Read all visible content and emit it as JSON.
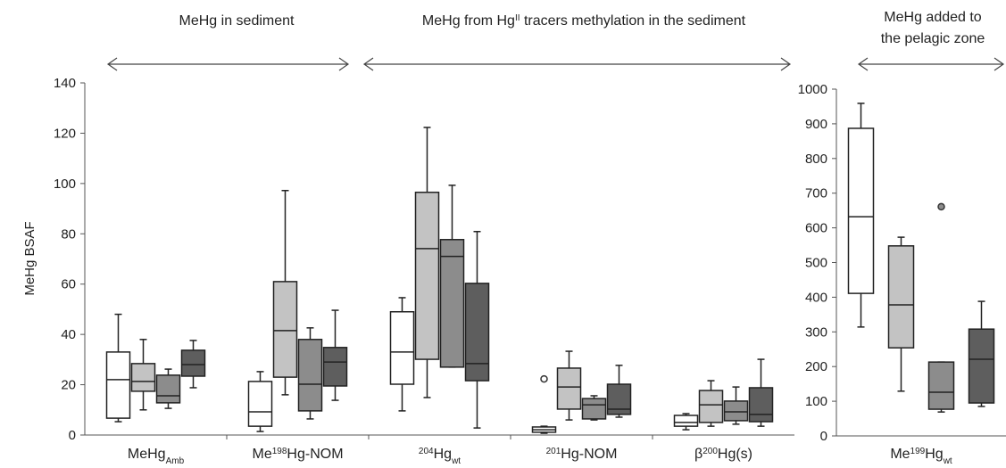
{
  "chart_data": [
    {
      "type": "box",
      "ylabel": "MeHg BSAF",
      "ylim": [
        0,
        140
      ],
      "yticks": [
        0,
        20,
        40,
        60,
        80,
        100,
        120,
        140
      ],
      "annotations": [
        {
          "lines": [
            [
              {
                "text": "MeHg in sediment"
              }
            ]
          ]
        },
        {
          "lines": [
            [
              {
                "text": "MeHg from Hg"
              },
              {
                "text": "II",
                "shift": "super"
              },
              {
                "text": " tracers methylation in the sediment"
              }
            ]
          ]
        }
      ],
      "categories": [
        [
          {
            "text": "MeHg"
          },
          {
            "text": "Amb",
            "shift": "sub"
          }
        ],
        [
          {
            "text": "Me"
          },
          {
            "text": "198",
            "shift": "super"
          },
          {
            "text": "Hg-NOM"
          }
        ],
        [
          {
            "text": "204",
            "shift": "super"
          },
          {
            "text": "Hg"
          },
          {
            "text": "wt",
            "shift": "sub"
          }
        ],
        [
          {
            "text": "201",
            "shift": "super"
          },
          {
            "text": "Hg-NOM"
          }
        ],
        [
          {
            "text": "β"
          },
          {
            "text": "200",
            "shift": "super"
          },
          {
            "text": "Hg(s)"
          }
        ]
      ],
      "series": [
        {
          "color": "#ffffff",
          "values": [
            {
              "whisker_low": 5.3,
              "q1": 6.7,
              "median": 22,
              "q3": 33,
              "whisker_high": 48
            },
            {
              "whisker_low": 1.4,
              "q1": 3.5,
              "median": 9.2,
              "q3": 21.3,
              "whisker_high": 25.2
            },
            {
              "whisker_low": 9.6,
              "q1": 20.2,
              "median": 33,
              "q3": 49,
              "whisker_high": 54.6
            },
            {
              "whisker_low": 0.7,
              "q1": 1.1,
              "median": 2.1,
              "q3": 3.2,
              "whisker_high": 3.5,
              "outliers": [
                22.3
              ]
            },
            {
              "whisker_low": 2.1,
              "q1": 3.5,
              "median": 5,
              "q3": 7.8,
              "whisker_high": 8.5
            }
          ]
        },
        {
          "color": "#c3c3c3",
          "values": [
            {
              "whisker_low": 10,
              "q1": 17.4,
              "median": 21.3,
              "q3": 28.4,
              "whisker_high": 38
            },
            {
              "whisker_low": 16,
              "q1": 23,
              "median": 41.5,
              "q3": 61,
              "whisker_high": 97.2
            },
            {
              "whisker_low": 14.9,
              "q1": 30.1,
              "median": 74.1,
              "q3": 96.5,
              "whisker_high": 122.3
            },
            {
              "whisker_low": 6,
              "q1": 10.3,
              "median": 19.1,
              "q3": 26.6,
              "whisker_high": 33.3
            },
            {
              "whisker_low": 3.5,
              "q1": 5,
              "median": 12,
              "q3": 17.7,
              "whisker_high": 21.6
            }
          ]
        },
        {
          "color": "#8c8c8c",
          "values": [
            {
              "whisker_low": 10.6,
              "q1": 12.8,
              "median": 15.6,
              "q3": 23.8,
              "whisker_high": 26.2
            },
            {
              "whisker_low": 6.4,
              "q1": 9.6,
              "median": 20.2,
              "q3": 38,
              "whisker_high": 42.6
            },
            {
              "whisker_low": 27,
              "q1": 27,
              "median": 71,
              "q3": 77.7,
              "whisker_high": 99.3
            },
            {
              "whisker_low": 6,
              "q1": 6.4,
              "median": 12,
              "q3": 14.5,
              "whisker_high": 15.6
            },
            {
              "whisker_low": 4.3,
              "q1": 5.7,
              "median": 9.2,
              "q3": 13.5,
              "whisker_high": 19.1
            }
          ]
        },
        {
          "color": "#5e5e5e",
          "values": [
            {
              "whisker_low": 18.8,
              "q1": 23.4,
              "median": 28,
              "q3": 33.7,
              "whisker_high": 37.6
            },
            {
              "whisker_low": 13.8,
              "q1": 19.5,
              "median": 29,
              "q3": 34.8,
              "whisker_high": 49.6
            },
            {
              "whisker_low": 2.8,
              "q1": 21.6,
              "median": 28.4,
              "q3": 60.3,
              "whisker_high": 80.9
            },
            {
              "whisker_low": 7.1,
              "q1": 8.2,
              "median": 10.3,
              "q3": 20.2,
              "whisker_high": 27.7
            },
            {
              "whisker_low": 3.5,
              "q1": 5.3,
              "median": 8.2,
              "q3": 18.8,
              "whisker_high": 30.1
            }
          ]
        }
      ]
    },
    {
      "type": "box",
      "ylim": [
        0,
        1000
      ],
      "yticks": [
        0,
        100,
        200,
        300,
        400,
        500,
        600,
        700,
        800,
        900,
        1000
      ],
      "annotations": [
        {
          "lines": [
            [
              {
                "text": "MeHg added to"
              }
            ],
            [
              {
                "text": "the pelagic zone"
              }
            ]
          ]
        }
      ],
      "categories": [
        [
          {
            "text": "Me"
          },
          {
            "text": "199",
            "shift": "super"
          },
          {
            "text": "Hg"
          },
          {
            "text": "wt",
            "shift": "sub"
          }
        ]
      ],
      "series": [
        {
          "color": "#ffffff",
          "values": [
            {
              "whisker_low": 314,
              "q1": 411,
              "median": 632,
              "q3": 887,
              "whisker_high": 959
            }
          ]
        },
        {
          "color": "#c3c3c3",
          "values": [
            {
              "whisker_low": 129,
              "q1": 254,
              "median": 378,
              "q3": 548,
              "whisker_high": 573
            }
          ]
        },
        {
          "color": "#8c8c8c",
          "values": [
            {
              "whisker_low": 69,
              "q1": 77,
              "median": 126,
              "q3": 213,
              "whisker_high": 213,
              "outliers": [
                661
              ]
            }
          ]
        },
        {
          "color": "#5e5e5e",
          "values": [
            {
              "whisker_low": 85,
              "q1": 95,
              "median": 221,
              "q3": 308,
              "whisker_high": 388
            }
          ]
        }
      ]
    }
  ]
}
